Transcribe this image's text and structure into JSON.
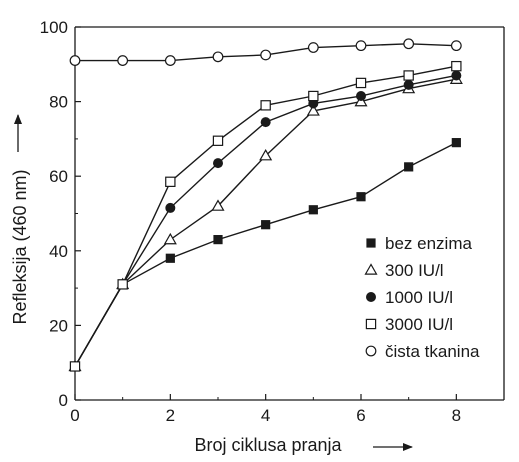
{
  "chart_data": {
    "type": "line",
    "title": "",
    "xlabel": "Broj ciklusa pranja",
    "ylabel": "Refleksija (460 nm)",
    "xlim": [
      0,
      9
    ],
    "ylim": [
      0,
      100
    ],
    "x_ticks": [
      0,
      2,
      4,
      6,
      8
    ],
    "y_ticks": [
      0,
      20,
      40,
      60,
      80,
      100
    ],
    "grid": false,
    "legend_position": "right",
    "series": [
      {
        "name": "bez enzima",
        "marker": "filled-square",
        "color": "#1a1a1a",
        "x": [
          0,
          1,
          2,
          3,
          4,
          5,
          6,
          7,
          8
        ],
        "y": [
          9,
          31,
          38,
          43,
          47,
          51,
          54.5,
          62.5,
          69
        ]
      },
      {
        "name": "300 IU/l",
        "marker": "open-triangle",
        "color": "#1a1a1a",
        "x": [
          0,
          1,
          2,
          3,
          4,
          5,
          6,
          7,
          8
        ],
        "y": [
          9,
          31,
          43,
          52,
          65.5,
          77.5,
          80,
          83.5,
          86
        ]
      },
      {
        "name": "1000 IU/l",
        "marker": "filled-circle",
        "color": "#1a1a1a",
        "x": [
          0,
          1,
          2,
          3,
          4,
          5,
          6,
          7,
          8
        ],
        "y": [
          9,
          31,
          51.5,
          63.5,
          74.5,
          79.5,
          81.5,
          84.5,
          87
        ]
      },
      {
        "name": "3000 IU/l",
        "marker": "open-square",
        "color": "#1a1a1a",
        "x": [
          0,
          1,
          2,
          3,
          4,
          5,
          6,
          7,
          8
        ],
        "y": [
          9,
          31,
          58.5,
          69.5,
          79,
          81.5,
          85,
          87,
          89.5
        ]
      },
      {
        "name": "čista tkanina",
        "marker": "open-circle",
        "color": "#1a1a1a",
        "x": [
          0,
          1,
          2,
          3,
          4,
          5,
          6,
          7,
          8
        ],
        "y": [
          91,
          91,
          91,
          92,
          92.5,
          94.5,
          95,
          95.5,
          95
        ]
      }
    ]
  }
}
